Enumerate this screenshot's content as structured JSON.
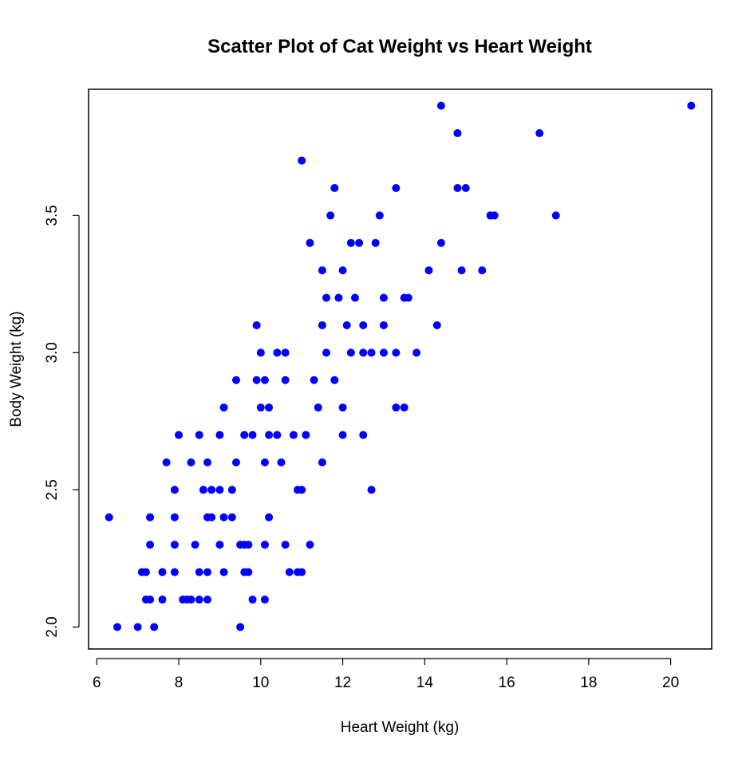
{
  "chart_data": {
    "type": "scatter",
    "title": "Scatter Plot of Cat Weight vs Heart Weight",
    "xlabel": "Heart Weight (kg)",
    "ylabel": "Body Weight (kg)",
    "xlim": [
      5.8,
      21.0
    ],
    "ylim": [
      1.92,
      3.96
    ],
    "x_ticks": [
      6,
      8,
      10,
      12,
      14,
      16,
      18,
      20
    ],
    "x_tick_labels": [
      "6",
      "8",
      "10",
      "12",
      "14",
      "16",
      "18",
      "20"
    ],
    "y_ticks": [
      2.0,
      2.5,
      3.0,
      3.5
    ],
    "y_tick_labels": [
      "2.0",
      "2.5",
      "3.0",
      "3.5"
    ],
    "grid": false,
    "legend": "none",
    "point_color": "#0000ff",
    "series": [
      {
        "points": [
          [
            6.5,
            2.0
          ],
          [
            7.0,
            2.0
          ],
          [
            7.4,
            2.0
          ],
          [
            9.5,
            2.0
          ],
          [
            7.2,
            2.1
          ],
          [
            7.3,
            2.1
          ],
          [
            7.6,
            2.1
          ],
          [
            8.1,
            2.1
          ],
          [
            8.2,
            2.1
          ],
          [
            8.3,
            2.1
          ],
          [
            8.5,
            2.1
          ],
          [
            8.7,
            2.1
          ],
          [
            9.8,
            2.1
          ],
          [
            10.1,
            2.1
          ],
          [
            7.1,
            2.2
          ],
          [
            7.2,
            2.2
          ],
          [
            7.6,
            2.2
          ],
          [
            7.9,
            2.2
          ],
          [
            8.5,
            2.2
          ],
          [
            8.7,
            2.2
          ],
          [
            9.1,
            2.2
          ],
          [
            9.6,
            2.2
          ],
          [
            9.7,
            2.2
          ],
          [
            10.7,
            2.2
          ],
          [
            10.9,
            2.2
          ],
          [
            11.0,
            2.2
          ],
          [
            7.3,
            2.3
          ],
          [
            7.9,
            2.3
          ],
          [
            8.4,
            2.3
          ],
          [
            9.0,
            2.3
          ],
          [
            9.5,
            2.3
          ],
          [
            9.6,
            2.3
          ],
          [
            9.7,
            2.3
          ],
          [
            10.1,
            2.3
          ],
          [
            10.6,
            2.3
          ],
          [
            11.2,
            2.3
          ],
          [
            6.3,
            2.4
          ],
          [
            7.3,
            2.4
          ],
          [
            7.9,
            2.4
          ],
          [
            8.7,
            2.4
          ],
          [
            8.8,
            2.4
          ],
          [
            9.1,
            2.4
          ],
          [
            9.3,
            2.4
          ],
          [
            10.2,
            2.4
          ],
          [
            7.9,
            2.5
          ],
          [
            8.6,
            2.5
          ],
          [
            8.8,
            2.5
          ],
          [
            9.0,
            2.5
          ],
          [
            9.3,
            2.5
          ],
          [
            10.9,
            2.5
          ],
          [
            11.0,
            2.5
          ],
          [
            12.7,
            2.5
          ],
          [
            7.7,
            2.6
          ],
          [
            8.3,
            2.6
          ],
          [
            8.7,
            2.6
          ],
          [
            9.4,
            2.6
          ],
          [
            10.1,
            2.6
          ],
          [
            10.5,
            2.6
          ],
          [
            11.5,
            2.6
          ],
          [
            8.0,
            2.7
          ],
          [
            8.5,
            2.7
          ],
          [
            9.0,
            2.7
          ],
          [
            9.6,
            2.7
          ],
          [
            9.8,
            2.7
          ],
          [
            10.2,
            2.7
          ],
          [
            10.4,
            2.7
          ],
          [
            10.8,
            2.7
          ],
          [
            11.1,
            2.7
          ],
          [
            12.0,
            2.7
          ],
          [
            12.5,
            2.7
          ],
          [
            9.1,
            2.8
          ],
          [
            10.0,
            2.8
          ],
          [
            10.2,
            2.8
          ],
          [
            11.4,
            2.8
          ],
          [
            12.0,
            2.8
          ],
          [
            13.3,
            2.8
          ],
          [
            13.5,
            2.8
          ],
          [
            9.4,
            2.9
          ],
          [
            9.9,
            2.9
          ],
          [
            10.1,
            2.9
          ],
          [
            10.6,
            2.9
          ],
          [
            11.3,
            2.9
          ],
          [
            11.8,
            2.9
          ],
          [
            10.0,
            3.0
          ],
          [
            10.4,
            3.0
          ],
          [
            10.6,
            3.0
          ],
          [
            11.6,
            3.0
          ],
          [
            12.2,
            3.0
          ],
          [
            12.5,
            3.0
          ],
          [
            12.7,
            3.0
          ],
          [
            13.0,
            3.0
          ],
          [
            13.3,
            3.0
          ],
          [
            13.8,
            3.0
          ],
          [
            9.9,
            3.1
          ],
          [
            11.5,
            3.1
          ],
          [
            12.1,
            3.1
          ],
          [
            12.5,
            3.1
          ],
          [
            13.0,
            3.1
          ],
          [
            14.3,
            3.1
          ],
          [
            11.6,
            3.2
          ],
          [
            11.9,
            3.2
          ],
          [
            12.3,
            3.2
          ],
          [
            13.0,
            3.2
          ],
          [
            13.5,
            3.2
          ],
          [
            13.6,
            3.2
          ],
          [
            11.5,
            3.3
          ],
          [
            12.0,
            3.3
          ],
          [
            14.1,
            3.3
          ],
          [
            14.9,
            3.3
          ],
          [
            15.4,
            3.3
          ],
          [
            11.2,
            3.4
          ],
          [
            12.2,
            3.4
          ],
          [
            12.4,
            3.4
          ],
          [
            12.8,
            3.4
          ],
          [
            14.4,
            3.4
          ],
          [
            11.7,
            3.5
          ],
          [
            12.9,
            3.5
          ],
          [
            15.6,
            3.5
          ],
          [
            15.7,
            3.5
          ],
          [
            17.2,
            3.5
          ],
          [
            11.8,
            3.6
          ],
          [
            13.3,
            3.6
          ],
          [
            14.8,
            3.6
          ],
          [
            15.0,
            3.6
          ],
          [
            11.0,
            3.7
          ],
          [
            14.8,
            3.8
          ],
          [
            16.8,
            3.8
          ],
          [
            14.4,
            3.9
          ],
          [
            20.5,
            3.9
          ]
        ]
      }
    ]
  }
}
